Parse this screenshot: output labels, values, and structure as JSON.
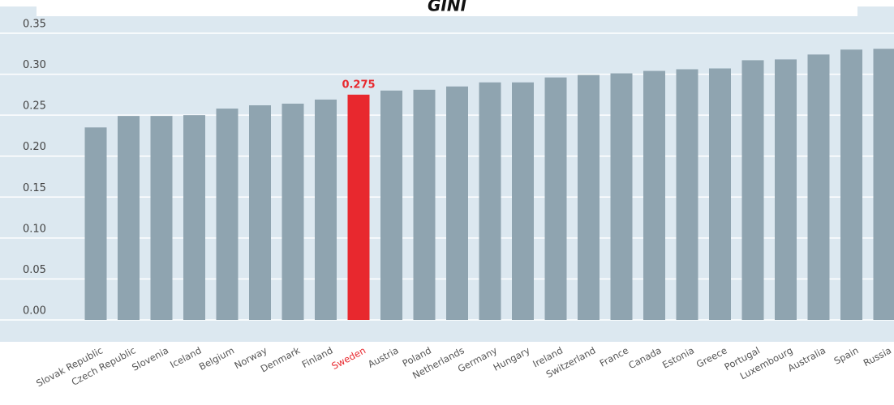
{
  "chart_data": {
    "type": "bar",
    "title": "GINI",
    "categories": [
      "Slovak Republic",
      "Czech Republic",
      "Slovenia",
      "Iceland",
      "Belgium",
      "Norway",
      "Denmark",
      "Finland",
      "Sweden",
      "Austria",
      "Poland",
      "Netherlands",
      "Germany",
      "Hungary",
      "Ireland",
      "Switzerland",
      "France",
      "Canada",
      "Estonia",
      "Greece",
      "Portugal",
      "Luxembourg",
      "Australia",
      "Spain",
      "Russia"
    ],
    "values": [
      0.235,
      0.249,
      0.249,
      0.25,
      0.258,
      0.262,
      0.264,
      0.269,
      0.275,
      0.28,
      0.281,
      0.285,
      0.29,
      0.29,
      0.296,
      0.299,
      0.301,
      0.304,
      0.306,
      0.307,
      0.317,
      0.318,
      0.324,
      0.33,
      0.331
    ],
    "color": "#8fa4b0",
    "highlight": {
      "index": 8,
      "color": "#e8282e"
    },
    "ylim": [
      0,
      0.35
    ],
    "yticks": [
      {
        "value": 0,
        "label": "0.00"
      },
      0.05,
      {
        "value": 0.1,
        "label": "0.10"
      },
      0.15,
      {
        "value": 0.2,
        "label": "0.20"
      },
      0.25,
      {
        "value": 0.3,
        "label": "0.30"
      },
      0.35
    ],
    "grid": true
  }
}
